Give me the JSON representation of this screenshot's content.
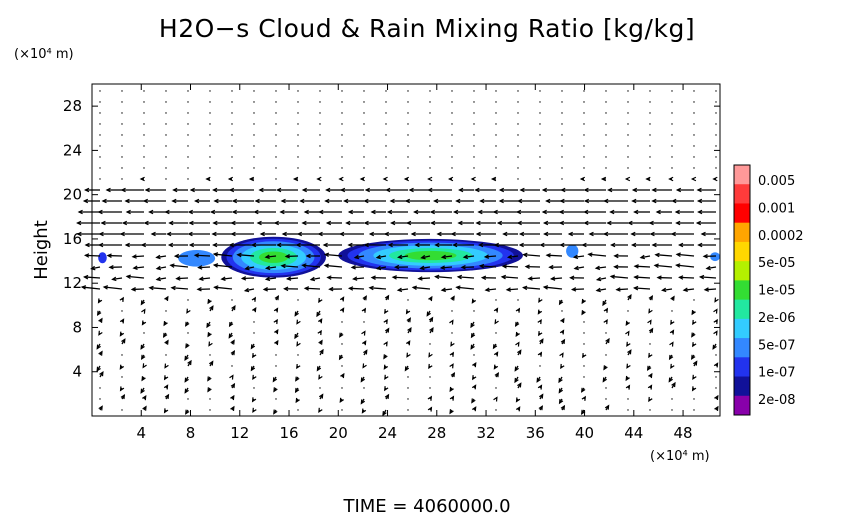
{
  "title": "H2O−s Cloud & Rain Mixing Ratio [kg/kg]",
  "footer": "TIME = 4060000.0",
  "chart_data": {
    "type": "heatmap",
    "title": "H2O−s Cloud & Rain Mixing Ratio [kg/kg]",
    "xlabel": "",
    "ylabel": "Height",
    "x_unit_label": "(×10⁴ m)",
    "y_unit_label": "(×10⁴ m)",
    "xlim": [
      0,
      51
    ],
    "ylim": [
      0,
      30
    ],
    "x_ticks": [
      4,
      8,
      12,
      16,
      20,
      24,
      28,
      32,
      36,
      40,
      44,
      48
    ],
    "y_ticks": [
      4,
      8,
      12,
      16,
      20,
      24,
      28
    ],
    "grid": false,
    "colorbar": {
      "placement": "right",
      "levels": [
        "0.005",
        "0.001",
        "0.0002",
        "5e-05",
        "1e-05",
        "2e-06",
        "5e-07",
        "1e-07",
        "2e-08"
      ],
      "colors": [
        "#ff9999",
        "#ff3b3b",
        "#ff0000",
        "#ffa500",
        "#ffd700",
        "#b4f000",
        "#33dd33",
        "#22e8a0",
        "#33ccff",
        "#3388ff",
        "#2233ee",
        "#111199",
        "#8800aa"
      ]
    },
    "cloud_regions": [
      {
        "x": [
          0.5,
          1.2
        ],
        "y": [
          13.8,
          14.8
        ],
        "level": "2e-08"
      },
      {
        "x": [
          7.0,
          10.0
        ],
        "y": [
          13.5,
          15.0
        ],
        "level": "1e-07"
      },
      {
        "x": [
          10.5,
          19.0
        ],
        "y": [
          12.5,
          16.2
        ],
        "peak_level": "1e-05"
      },
      {
        "x": [
          20.0,
          35.0
        ],
        "y": [
          13.0,
          16.0
        ],
        "peak_level": "1e-05"
      },
      {
        "x": [
          38.5,
          39.5
        ],
        "y": [
          14.3,
          15.5
        ],
        "level": "1e-07"
      },
      {
        "x": [
          50.2,
          51.0
        ],
        "y": [
          14.0,
          14.8
        ],
        "level": "1e-07"
      }
    ],
    "wind_vectors": "westward jet near 16–20 (×10⁴ m), weak flow elsewhere"
  }
}
